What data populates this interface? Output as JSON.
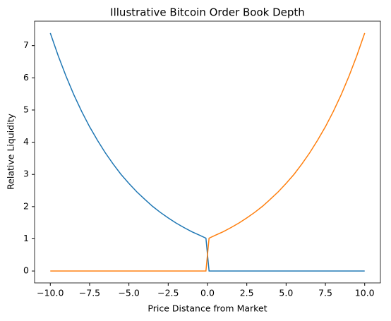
{
  "chart_data": {
    "type": "line",
    "title": "Illustrative Bitcoin Order Book Depth",
    "xlabel": "Price Distance from Market",
    "ylabel": "Relative Liquidity",
    "x": [
      -10,
      -9.5,
      -9,
      -8.5,
      -8,
      -7.5,
      -7,
      -6.5,
      -6,
      -5.5,
      -5,
      -4.5,
      -4,
      -3.5,
      -3,
      -2.5,
      -2,
      -1.5,
      -1,
      -0.5,
      -0.1,
      0.1,
      0.5,
      1,
      1.5,
      2,
      2.5,
      3,
      3.5,
      4,
      4.5,
      5,
      5.5,
      6,
      6.5,
      7,
      7.5,
      8,
      8.5,
      9,
      9.5,
      10
    ],
    "series": [
      {
        "color": "#1f77b4",
        "values": [
          7.39,
          6.69,
          6.05,
          5.47,
          4.95,
          4.48,
          4.06,
          3.67,
          3.32,
          3.0,
          2.72,
          2.46,
          2.23,
          2.01,
          1.82,
          1.65,
          1.49,
          1.35,
          1.22,
          1.11,
          1.02,
          0,
          0,
          0,
          0,
          0,
          0,
          0,
          0,
          0,
          0,
          0,
          0,
          0,
          0,
          0,
          0,
          0,
          0,
          0,
          0,
          0
        ]
      },
      {
        "color": "#ff7f0e",
        "values": [
          0,
          0,
          0,
          0,
          0,
          0,
          0,
          0,
          0,
          0,
          0,
          0,
          0,
          0,
          0,
          0,
          0,
          0,
          0,
          0,
          0,
          1.02,
          1.11,
          1.22,
          1.35,
          1.49,
          1.65,
          1.82,
          2.01,
          2.23,
          2.46,
          2.72,
          3.0,
          3.32,
          3.67,
          4.06,
          4.48,
          4.95,
          5.47,
          6.05,
          6.69,
          7.39
        ]
      }
    ],
    "xlim": [
      -11,
      11
    ],
    "ylim": [
      -0.37,
      7.76
    ],
    "xticks": [
      {
        "value": -10,
        "label": "−10.0"
      },
      {
        "value": -7.5,
        "label": "−7.5"
      },
      {
        "value": -5,
        "label": "−5.0"
      },
      {
        "value": -2.5,
        "label": "−2.5"
      },
      {
        "value": 0,
        "label": "0.0"
      },
      {
        "value": 2.5,
        "label": "2.5"
      },
      {
        "value": 5,
        "label": "5.0"
      },
      {
        "value": 7.5,
        "label": "7.5"
      },
      {
        "value": 10,
        "label": "10.0"
      }
    ],
    "yticks": [
      0,
      1,
      2,
      3,
      4,
      5,
      6,
      7
    ]
  }
}
